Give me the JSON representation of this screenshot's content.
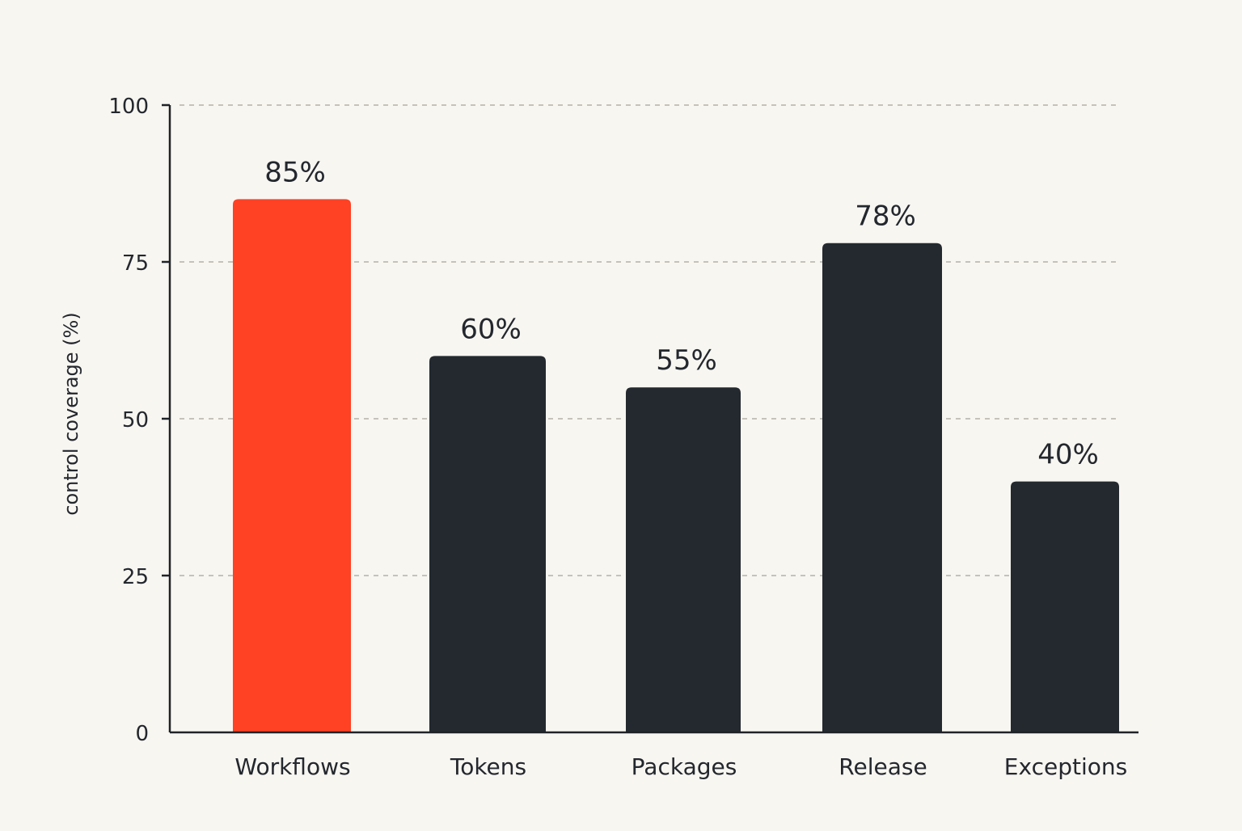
{
  "chart_data": {
    "type": "bar",
    "title": "",
    "xlabel": "",
    "ylabel": "control coverage (%)",
    "categories": [
      "Workflows",
      "Tokens",
      "Packages",
      "Release",
      "Exceptions"
    ],
    "values": [
      85,
      60,
      55,
      78,
      40
    ],
    "value_labels": [
      "85%",
      "60%",
      "55%",
      "78%",
      "40%"
    ],
    "ylim": [
      0,
      100
    ],
    "yticks": [
      0,
      25,
      50,
      75,
      100
    ],
    "grid": true,
    "bar_colors": [
      "#ff4124",
      "#23292f",
      "#23292f",
      "#23292f",
      "#23292f"
    ],
    "text_color": "#23272e",
    "grid_color": "#b4b1ab",
    "background": "#f8f6f1"
  }
}
